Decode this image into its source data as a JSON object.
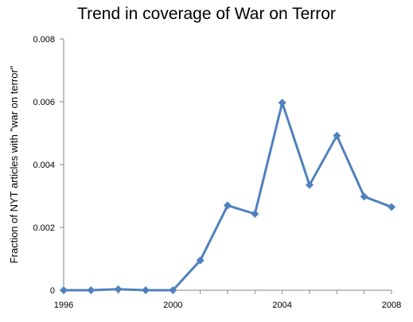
{
  "chart_data": {
    "type": "line",
    "title": "Trend in coverage of War on Terror",
    "xlabel": "",
    "ylabel": "Fraction of NYT articles with \"war on terror\"",
    "xlim": [
      1996,
      2008
    ],
    "ylim": [
      0,
      0.008
    ],
    "x_ticks": [
      "1996",
      "2000",
      "2004",
      "2008"
    ],
    "y_ticks": [
      "0",
      "0.002",
      "0.004",
      "0.006",
      "0.008"
    ],
    "grid": false,
    "legend": "none",
    "series": [
      {
        "color": "#4F81BD",
        "x": [
          1996,
          1997,
          1998,
          1999,
          2000,
          2001,
          2002,
          2003,
          2004,
          2005,
          2006,
          2007,
          2008
        ],
        "y": [
          0.0,
          0.0,
          3e-05,
          0.0,
          0.0,
          0.00095,
          0.0027,
          0.00243,
          0.00597,
          0.00335,
          0.00492,
          0.00298,
          0.00265
        ]
      }
    ]
  }
}
